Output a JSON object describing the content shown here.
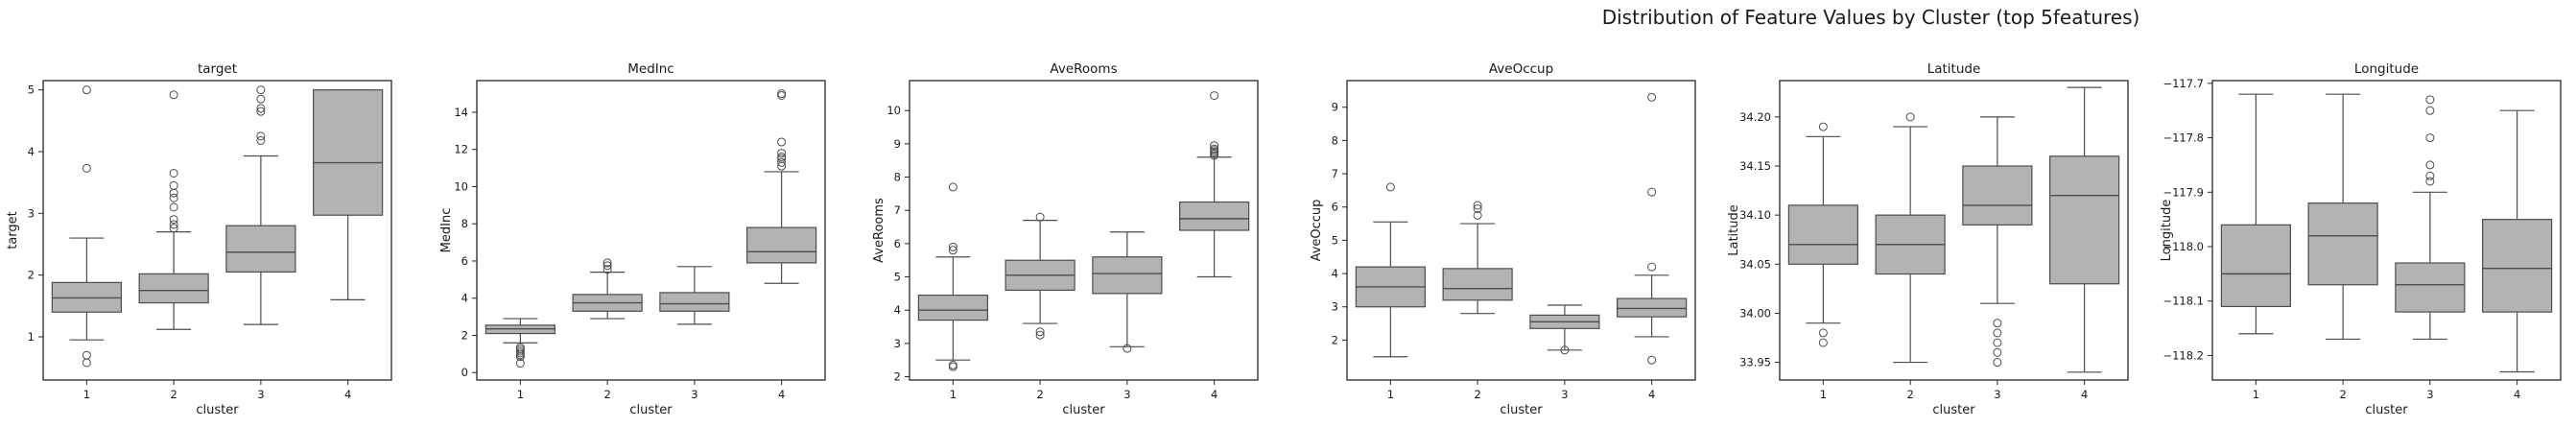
{
  "figure": {
    "title": "Distribution of Feature Values by Cluster (top 5features)",
    "colors": {
      "box_fill": "#b3b3b3",
      "line": "#4d4d4d",
      "frame": "#262626"
    }
  },
  "chart_data": [
    {
      "type": "box",
      "title": "target",
      "xlabel": "cluster",
      "ylabel": "target",
      "categories": [
        "1",
        "2",
        "3",
        "4"
      ],
      "ylim": [
        0.3,
        5.15
      ],
      "yticks": [
        1,
        2,
        3,
        4,
        5
      ],
      "boxes": [
        {
          "whislo": 0.95,
          "q1": 1.4,
          "med": 1.63,
          "q3": 1.88,
          "whishi": 2.6,
          "fliers": [
            5.0,
            3.73,
            0.7,
            0.58
          ]
        },
        {
          "whislo": 1.12,
          "q1": 1.55,
          "med": 1.75,
          "q3": 2.02,
          "whishi": 2.7,
          "fliers": [
            4.92,
            3.65,
            3.45,
            3.33,
            3.25,
            3.1,
            2.9,
            2.82,
            2.76
          ]
        },
        {
          "whislo": 1.2,
          "q1": 2.05,
          "med": 2.37,
          "q3": 2.8,
          "whishi": 3.93,
          "fliers": [
            5.0,
            4.85,
            4.7,
            4.65,
            4.25,
            4.18
          ]
        },
        {
          "whislo": 1.6,
          "q1": 2.97,
          "med": 3.82,
          "q3": 5.0,
          "whishi": 5.0,
          "fliers": []
        }
      ]
    },
    {
      "type": "box",
      "title": "MedInc",
      "xlabel": "cluster",
      "ylabel": "MedInc",
      "categories": [
        "1",
        "2",
        "3",
        "4"
      ],
      "ylim": [
        -0.4,
        15.7
      ],
      "yticks": [
        0,
        2,
        4,
        6,
        8,
        10,
        12,
        14
      ],
      "boxes": [
        {
          "whislo": 1.6,
          "q1": 2.1,
          "med": 2.35,
          "q3": 2.55,
          "whishi": 2.9,
          "fliers": [
            1.35,
            1.25,
            1.15,
            1.05,
            0.95,
            0.85,
            0.5
          ]
        },
        {
          "whislo": 2.9,
          "q1": 3.3,
          "med": 3.75,
          "q3": 4.2,
          "whishi": 5.4,
          "fliers": [
            5.55,
            5.75,
            5.9
          ]
        },
        {
          "whislo": 2.6,
          "q1": 3.3,
          "med": 3.7,
          "q3": 4.3,
          "whishi": 5.7,
          "fliers": []
        },
        {
          "whislo": 4.8,
          "q1": 5.9,
          "med": 6.5,
          "q3": 7.8,
          "whishi": 10.8,
          "fliers": [
            15.0,
            14.9,
            12.4,
            11.8,
            11.6,
            11.5,
            11.3,
            11.1
          ]
        }
      ]
    },
    {
      "type": "box",
      "title": "AveRooms",
      "xlabel": "cluster",
      "ylabel": "AveRooms",
      "categories": [
        "1",
        "2",
        "3",
        "4"
      ],
      "ylim": [
        1.9,
        10.9
      ],
      "yticks": [
        2,
        3,
        4,
        5,
        6,
        7,
        8,
        9,
        10
      ],
      "boxes": [
        {
          "whislo": 2.5,
          "q1": 3.7,
          "med": 4.0,
          "q3": 4.45,
          "whishi": 5.6,
          "fliers": [
            7.7,
            5.9,
            5.8,
            2.35,
            2.3
          ]
        },
        {
          "whislo": 3.6,
          "q1": 4.6,
          "med": 5.05,
          "q3": 5.5,
          "whishi": 6.7,
          "fliers": [
            6.8,
            3.35,
            3.25
          ]
        },
        {
          "whislo": 2.9,
          "q1": 4.5,
          "med": 5.1,
          "q3": 5.6,
          "whishi": 6.35,
          "fliers": [
            2.85
          ]
        },
        {
          "whislo": 5.0,
          "q1": 6.4,
          "med": 6.75,
          "q3": 7.25,
          "whishi": 8.6,
          "fliers": [
            10.45,
            8.95,
            8.85,
            8.8,
            8.75,
            8.7,
            8.65
          ]
        }
      ]
    },
    {
      "type": "box",
      "title": "AveOccup",
      "xlabel": "cluster",
      "ylabel": "AveOccup",
      "categories": [
        "1",
        "2",
        "3",
        "4"
      ],
      "ylim": [
        0.8,
        9.8
      ],
      "yticks": [
        2,
        3,
        4,
        5,
        6,
        7,
        8,
        9
      ],
      "boxes": [
        {
          "whislo": 1.5,
          "q1": 3.0,
          "med": 3.6,
          "q3": 4.2,
          "whishi": 5.55,
          "fliers": [
            6.6
          ]
        },
        {
          "whislo": 2.8,
          "q1": 3.2,
          "med": 3.55,
          "q3": 4.15,
          "whishi": 5.5,
          "fliers": [
            6.05,
            5.95,
            5.75
          ]
        },
        {
          "whislo": 1.7,
          "q1": 2.35,
          "med": 2.55,
          "q3": 2.75,
          "whishi": 3.05,
          "fliers": [
            1.7
          ]
        },
        {
          "whislo": 2.1,
          "q1": 2.7,
          "med": 2.95,
          "q3": 3.25,
          "whishi": 3.95,
          "fliers": [
            9.3,
            6.45,
            4.2,
            1.4
          ]
        }
      ]
    },
    {
      "type": "box",
      "title": "Latitude",
      "xlabel": "cluster",
      "ylabel": "Latitude",
      "categories": [
        "1",
        "2",
        "3",
        "4"
      ],
      "ylim": [
        33.932,
        34.237
      ],
      "yticks": [
        33.95,
        34.0,
        34.05,
        34.1,
        34.15,
        34.2
      ],
      "yformat": 2,
      "boxes": [
        {
          "whislo": 33.99,
          "q1": 34.05,
          "med": 34.07,
          "q3": 34.11,
          "whishi": 34.18,
          "fliers": [
            34.19,
            33.98,
            33.97
          ]
        },
        {
          "whislo": 33.95,
          "q1": 34.04,
          "med": 34.07,
          "q3": 34.1,
          "whishi": 34.19,
          "fliers": [
            34.2
          ]
        },
        {
          "whislo": 34.01,
          "q1": 34.09,
          "med": 34.11,
          "q3": 34.15,
          "whishi": 34.2,
          "fliers": [
            33.99,
            33.98,
            33.97,
            33.96,
            33.95
          ]
        },
        {
          "whislo": 33.94,
          "q1": 34.03,
          "med": 34.12,
          "q3": 34.16,
          "whishi": 34.23,
          "fliers": []
        }
      ]
    },
    {
      "type": "box",
      "title": "Longitude",
      "xlabel": "cluster",
      "ylabel": "Longitude",
      "categories": [
        "1",
        "2",
        "3",
        "4"
      ],
      "ylim": [
        -118.245,
        -117.695
      ],
      "yticks": [
        -118.2,
        -118.1,
        -118.0,
        -117.9,
        -117.8,
        -117.7
      ],
      "yformat": 1,
      "boxes": [
        {
          "whislo": -118.16,
          "q1": -118.11,
          "med": -118.05,
          "q3": -117.96,
          "whishi": -117.72,
          "fliers": []
        },
        {
          "whislo": -118.17,
          "q1": -118.07,
          "med": -117.98,
          "q3": -117.92,
          "whishi": -117.72,
          "fliers": []
        },
        {
          "whislo": -118.17,
          "q1": -118.12,
          "med": -118.07,
          "q3": -118.03,
          "whishi": -117.9,
          "fliers": [
            -117.73,
            -117.75,
            -117.8,
            -117.85,
            -117.87,
            -117.88
          ]
        },
        {
          "whislo": -118.23,
          "q1": -118.12,
          "med": -118.04,
          "q3": -117.95,
          "whishi": -117.75,
          "fliers": []
        }
      ]
    }
  ]
}
